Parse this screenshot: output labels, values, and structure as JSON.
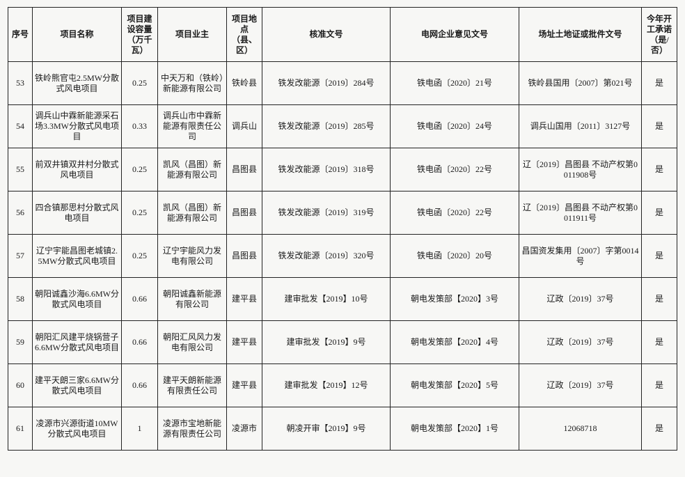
{
  "table": {
    "header": [
      "序号",
      "项目名称",
      "项目建设容量（万千瓦）",
      "项目业主",
      "项目地点（县、区）",
      "核准文号",
      "电网企业意见文号",
      "场址土地证或批件文号",
      "今年开工承诺（是/否）"
    ],
    "rows": [
      [
        "53",
        "铁岭熊官屯2.5MW分散式风电项目",
        "0.25",
        "中天万和（铁岭）新能源有限公司",
        "铁岭县",
        "铁发改能源〔2019〕284号",
        "铁电函〔2020〕21号",
        "铁岭县国用〔2007〕第021号",
        "是"
      ],
      [
        "54",
        "调兵山中霖新能源采石场3.3MW分散式风电项目",
        "0.33",
        "调兵山市中霖新能源有限责任公司",
        "调兵山",
        "铁发改能源〔2019〕285号",
        "铁电函〔2020〕24号",
        "调兵山国用〔2011〕3127号",
        "是"
      ],
      [
        "55",
        "前双井镇双井村分散式风电项目",
        "0.25",
        "凯风（昌图）新能源有限公司",
        "昌图县",
        "铁发改能源〔2019〕318号",
        "铁电函〔2020〕22号",
        "辽〔2019〕昌图县 不动产权第0011908号",
        "是"
      ],
      [
        "56",
        "四合镇那思村分散式风电项目",
        "0.25",
        "凯风（昌图）新能源有限公司",
        "昌图县",
        "铁发改能源〔2019〕319号",
        "铁电函〔2020〕22号",
        "辽〔2019〕昌图县 不动产权第0011911号",
        "是"
      ],
      [
        "57",
        "辽宁宇能昌图老城镇2.5MW分散式风电项目",
        "0.25",
        "辽宁宇能风力发电有限公司",
        "昌图县",
        "铁发改能源〔2019〕320号",
        "铁电函〔2020〕20号",
        "昌国资发集用〔2007〕字第0014号",
        "是"
      ],
      [
        "58",
        "朝阳诚鑫沙海6.6MW分散式风电项目",
        "0.66",
        "朝阳诚鑫新能源有限公司",
        "建平县",
        "建审批发【2019】10号",
        "朝电发策部【2020】3号",
        "辽政〔2019〕37号",
        "是"
      ],
      [
        "59",
        "朝阳汇风建平烧锅营子6.6MW分散式风电项目",
        "0.66",
        "朝阳汇风风力发电有限公司",
        "建平县",
        "建审批发【2019】9号",
        "朝电发策部【2020】4号",
        "辽政〔2019〕37号",
        "是"
      ],
      [
        "60",
        "建平天朗三家6.6MW分散式风电项目",
        "0.66",
        "建平天朗新能源有限责任公司",
        "建平县",
        "建审批发【2019】12号",
        "朝电发策部【2020】5号",
        "辽政〔2019〕37号",
        "是"
      ],
      [
        "61",
        "凌源市兴源街道10MW分散式风电项目",
        "1",
        "凌源市宝地新能源有限责任公司",
        "凌源市",
        "朝凌开审【2019】9号",
        "朝电发策部【2020】1号",
        "12068718",
        "是"
      ]
    ]
  }
}
